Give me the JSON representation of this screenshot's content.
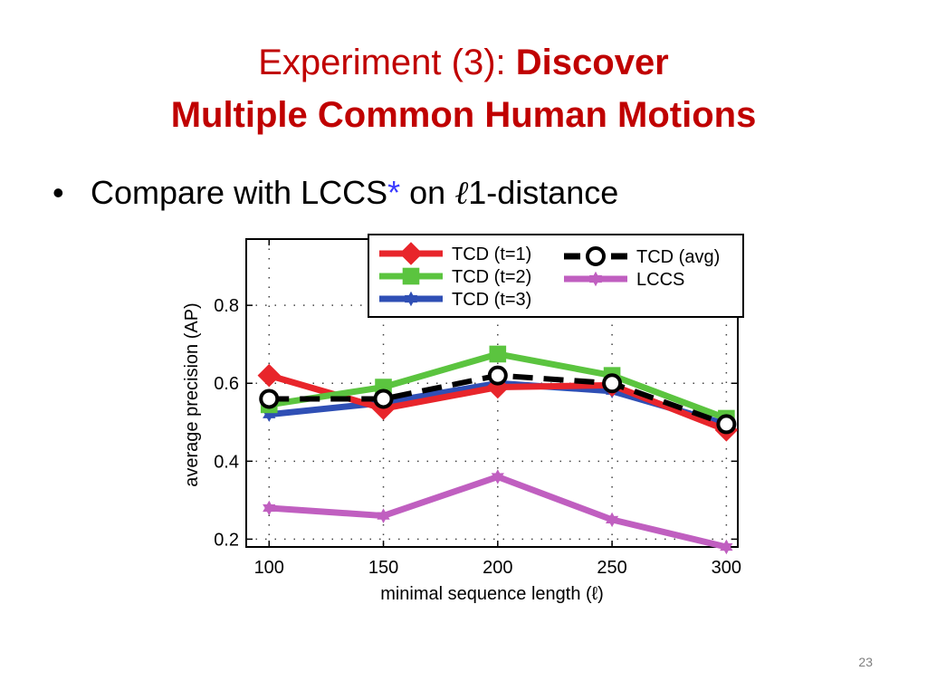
{
  "slide": {
    "title_regular": "Experiment (3): ",
    "title_bold_1": "Discover",
    "title_bold_2": "Multiple Common Human Motions",
    "bullet_prefix": "Compare with LCCS",
    "bullet_star": "*",
    "bullet_mid": " on ",
    "bullet_ell": "ℓ",
    "bullet_one": "1",
    "bullet_suffix": "-distance",
    "page_number": "23"
  },
  "colors": {
    "title": "#c00000",
    "TCD (t=1)": "#e8252b",
    "TCD (t=2)": "#5bc43f",
    "TCD (t=3)": "#2f4fb5",
    "TCD (avg)": "#000000",
    "LCCS": "#c05fc0"
  },
  "chart_data": {
    "type": "line",
    "xlabel": "minimal sequence length (ℓ)",
    "ylabel": "average precision (AP)",
    "x": [
      100,
      150,
      200,
      250,
      300
    ],
    "xticks": [
      "100",
      "150",
      "200",
      "250",
      "300"
    ],
    "yticks": [
      "0.2",
      "0.4",
      "0.6",
      "0.8"
    ],
    "xlim": [
      90,
      305
    ],
    "ylim": [
      0.18,
      0.97
    ],
    "grid": true,
    "legend_placement": "top-right",
    "series": [
      {
        "name": "TCD (t=1)",
        "values": [
          0.62,
          0.535,
          0.59,
          0.595,
          0.48
        ],
        "marker": "diamond",
        "dash": "solid"
      },
      {
        "name": "TCD (t=2)",
        "values": [
          0.545,
          0.59,
          0.675,
          0.62,
          0.51
        ],
        "marker": "square",
        "dash": "solid"
      },
      {
        "name": "TCD (t=3)",
        "values": [
          0.52,
          0.55,
          0.6,
          0.58,
          0.495
        ],
        "marker": "star",
        "dash": "solid"
      },
      {
        "name": "TCD (avg)",
        "values": [
          0.56,
          0.56,
          0.62,
          0.6,
          0.495
        ],
        "marker": "circle",
        "dash": "dashed"
      },
      {
        "name": "LCCS",
        "values": [
          0.28,
          0.26,
          0.36,
          0.25,
          0.18
        ],
        "marker": "star",
        "dash": "solid"
      }
    ]
  }
}
